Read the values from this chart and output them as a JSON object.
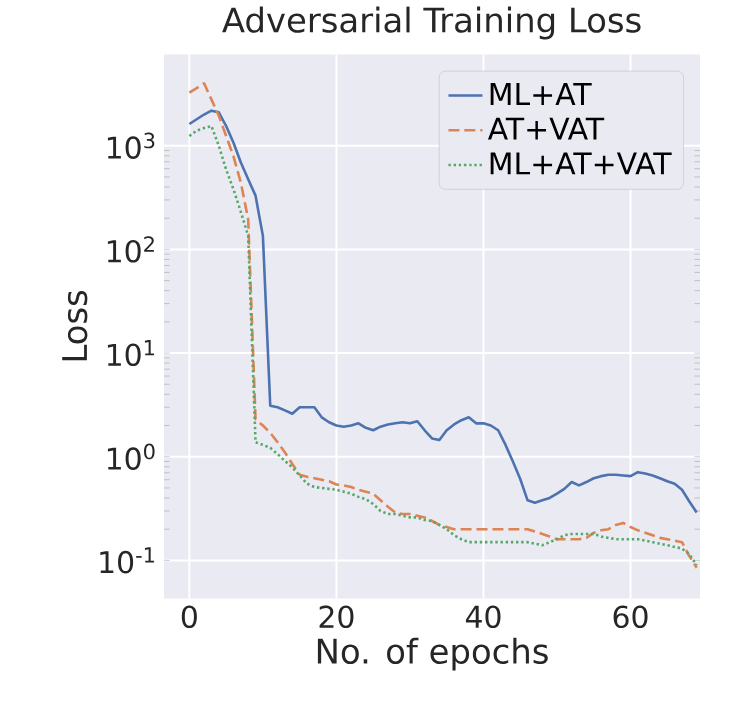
{
  "chart_data": {
    "type": "line",
    "title": "Adversarial Training Loss",
    "xlabel": "No. of epochs",
    "ylabel": "Loss",
    "log": "y",
    "grid": true,
    "legend": "top right",
    "xlim": [
      -3.45,
      69.45
    ],
    "ylim": [
      0.043,
      7600
    ],
    "xticks": [
      0,
      20,
      40,
      60
    ],
    "yticks": [
      {
        "value": 0.1,
        "label": "10$^{-1}$"
      },
      {
        "value": 1,
        "label": "10$^{0}$"
      },
      {
        "value": 10,
        "label": "10$^{1}$"
      },
      {
        "value": 100,
        "label": "10$^{2}$"
      },
      {
        "value": 1000,
        "label": "10$^{3}$"
      }
    ],
    "x": [
      0,
      1,
      2,
      3,
      4,
      5,
      6,
      7,
      8,
      9,
      10,
      11,
      12,
      13,
      14,
      15,
      16,
      17,
      18,
      19,
      20,
      21,
      22,
      23,
      24,
      25,
      26,
      27,
      28,
      29,
      30,
      31,
      32,
      33,
      34,
      35,
      36,
      37,
      38,
      39,
      40,
      41,
      42,
      43,
      44,
      45,
      46,
      47,
      48,
      49,
      50,
      51,
      52,
      53,
      54,
      55,
      56,
      57,
      58,
      59,
      60,
      61,
      62,
      63,
      64,
      65,
      66,
      67,
      68,
      69
    ],
    "series": [
      {
        "name": "ML+AT",
        "color": "#4c72b0",
        "line_style": "solid",
        "values": [
          1620,
          1800,
          2000,
          2180,
          2100,
          1550,
          1070,
          690,
          475,
          330,
          135,
          3.1,
          3.0,
          2.8,
          2.6,
          3.0,
          3.0,
          3.0,
          2.4,
          2.15,
          2.0,
          1.95,
          2.0,
          2.1,
          1.9,
          1.8,
          1.95,
          2.05,
          2.1,
          2.15,
          2.1,
          2.2,
          1.8,
          1.5,
          1.45,
          1.8,
          2.05,
          2.25,
          2.4,
          2.1,
          2.1,
          2.0,
          1.8,
          1.3,
          0.9,
          0.61,
          0.38,
          0.36,
          0.38,
          0.4,
          0.44,
          0.49,
          0.57,
          0.53,
          0.57,
          0.62,
          0.65,
          0.67,
          0.67,
          0.66,
          0.65,
          0.71,
          0.69,
          0.66,
          0.62,
          0.58,
          0.55,
          0.48,
          0.37,
          0.29
        ]
      },
      {
        "name": "AT+VAT",
        "color": "#dd8452",
        "line_style": "dashed",
        "values": [
          3250,
          3600,
          4000,
          2800,
          1950,
          1240,
          790,
          440,
          195,
          2.3,
          2.0,
          1.7,
          1.38,
          1.1,
          0.85,
          0.67,
          0.64,
          0.62,
          0.6,
          0.58,
          0.54,
          0.53,
          0.51,
          0.48,
          0.46,
          0.44,
          0.38,
          0.33,
          0.29,
          0.28,
          0.28,
          0.27,
          0.26,
          0.24,
          0.22,
          0.21,
          0.2,
          0.2,
          0.2,
          0.2,
          0.2,
          0.2,
          0.2,
          0.2,
          0.2,
          0.2,
          0.2,
          0.19,
          0.18,
          0.17,
          0.16,
          0.16,
          0.16,
          0.16,
          0.165,
          0.185,
          0.195,
          0.2,
          0.22,
          0.23,
          0.21,
          0.195,
          0.185,
          0.175,
          0.165,
          0.16,
          0.155,
          0.15,
          0.11,
          0.085
        ]
      },
      {
        "name": "ML+AT+VAT",
        "color": "#55a868",
        "line_style": "dotted",
        "values": [
          1240,
          1400,
          1480,
          1550,
          1000,
          590,
          380,
          230,
          135,
          1.38,
          1.3,
          1.22,
          1.06,
          0.91,
          0.79,
          0.66,
          0.55,
          0.51,
          0.5,
          0.49,
          0.48,
          0.46,
          0.44,
          0.41,
          0.39,
          0.35,
          0.3,
          0.28,
          0.28,
          0.27,
          0.26,
          0.26,
          0.245,
          0.24,
          0.22,
          0.2,
          0.175,
          0.16,
          0.15,
          0.15,
          0.15,
          0.15,
          0.15,
          0.15,
          0.15,
          0.15,
          0.15,
          0.145,
          0.14,
          0.15,
          0.16,
          0.175,
          0.18,
          0.18,
          0.18,
          0.18,
          0.17,
          0.165,
          0.16,
          0.16,
          0.16,
          0.16,
          0.155,
          0.15,
          0.145,
          0.14,
          0.135,
          0.13,
          0.115,
          0.09
        ]
      }
    ]
  }
}
